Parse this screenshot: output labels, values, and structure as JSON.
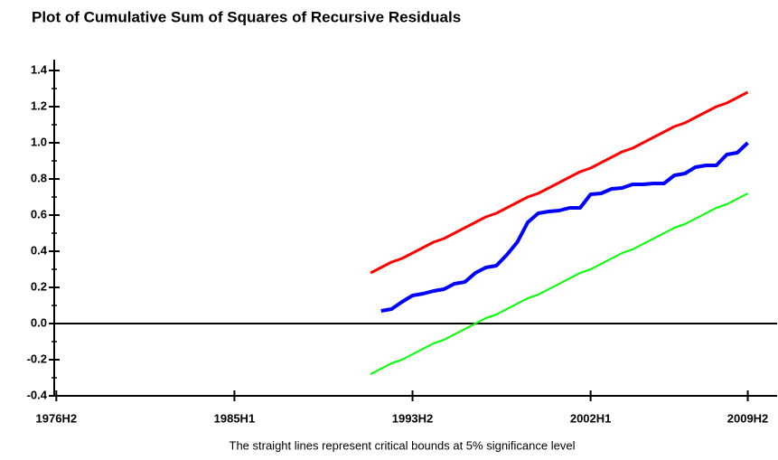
{
  "chart_data": {
    "type": "line",
    "title": "Plot of Cumulative Sum of Squares of Recursive Residuals",
    "caption": "The straight lines represent critical bounds at 5% significance level",
    "x": [
      1991.5,
      1992.0,
      1992.5,
      1993.0,
      1993.5,
      1994.0,
      1994.5,
      1995.0,
      1995.5,
      1996.0,
      1996.5,
      1997.0,
      1997.5,
      1998.0,
      1998.5,
      1999.0,
      1999.5,
      2000.0,
      2000.5,
      2001.0,
      2001.5,
      2002.0,
      2002.5,
      2003.0,
      2003.5,
      2004.0,
      2004.5,
      2005.0,
      2005.5,
      2006.0,
      2006.5,
      2007.0,
      2007.5,
      2008.0,
      2008.5,
      2009.0,
      2009.5
    ],
    "series": [
      {
        "color": "#ff0000",
        "values": [
          0.28,
          0.31,
          0.34,
          0.36,
          0.39,
          0.42,
          0.45,
          0.47,
          0.5,
          0.53,
          0.56,
          0.59,
          0.61,
          0.64,
          0.67,
          0.7,
          0.72,
          0.75,
          0.78,
          0.81,
          0.84,
          0.86,
          0.89,
          0.92,
          0.95,
          0.97,
          1.0,
          1.03,
          1.06,
          1.09,
          1.11,
          1.14,
          1.17,
          1.2,
          1.22,
          1.25,
          1.28
        ]
      },
      {
        "color": "#00ff00",
        "values": [
          -0.28,
          -0.25,
          -0.22,
          -0.2,
          -0.17,
          -0.14,
          -0.11,
          -0.09,
          -0.06,
          -0.03,
          0.0,
          0.03,
          0.05,
          0.08,
          0.11,
          0.14,
          0.16,
          0.19,
          0.22,
          0.25,
          0.28,
          0.3,
          0.33,
          0.36,
          0.39,
          0.41,
          0.44,
          0.47,
          0.5,
          0.53,
          0.55,
          0.58,
          0.61,
          0.64,
          0.66,
          0.69,
          0.72
        ]
      },
      {
        "color": "#0000ff",
        "values": [
          null,
          0.07,
          0.08,
          0.12,
          0.155,
          0.165,
          0.18,
          0.19,
          0.22,
          0.23,
          0.28,
          0.31,
          0.32,
          0.38,
          0.45,
          0.56,
          0.61,
          0.62,
          0.625,
          0.64,
          0.64,
          0.715,
          0.72,
          0.745,
          0.75,
          0.77,
          0.77,
          0.775,
          0.775,
          0.82,
          0.83,
          0.865,
          0.875,
          0.875,
          0.935,
          0.945,
          1.0
        ]
      }
    ],
    "xlim": [
      1976.4,
      2010.9
    ],
    "xticks": [
      {
        "value": 1976.5,
        "label": "1976H2"
      },
      {
        "value": 1985.0,
        "label": "1985H1"
      },
      {
        "value": 1993.5,
        "label": "1993H2"
      },
      {
        "value": 2002.0,
        "label": "2002H1"
      },
      {
        "value": 2009.5,
        "label": "2009H2"
      }
    ],
    "ylim": [
      -0.4,
      1.46
    ],
    "yticks": [
      -0.4,
      -0.2,
      {
        "value": 0,
        "label": "0.0"
      },
      0.2,
      0.4,
      0.6,
      0.8,
      {
        "value": 1,
        "label": "1.0"
      },
      1.2,
      1.4
    ],
    "zero_line": true
  }
}
